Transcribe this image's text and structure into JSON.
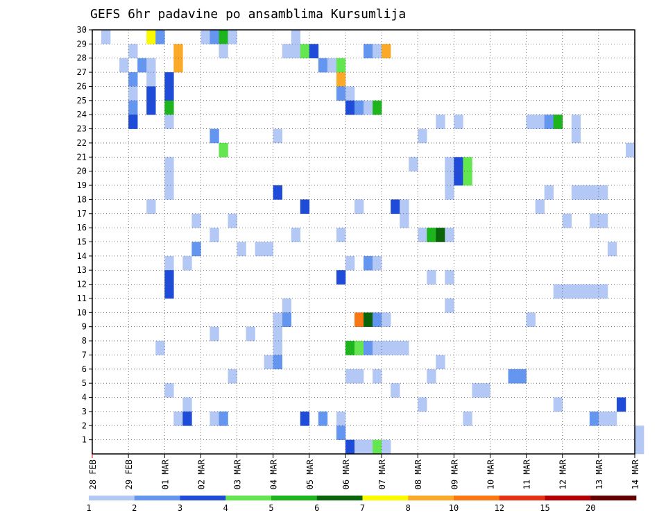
{
  "chart_data": {
    "type": "heatmap",
    "title": "GEFS 6hr padavine po ansamblima Kursumlija",
    "xlabel": "",
    "ylabel": "",
    "x_tick_labels": [
      "28 FEB",
      "29 FEB",
      "01 MAR",
      "02 MAR",
      "03 MAR",
      "04 MAR",
      "05 MAR",
      "06 MAR",
      "07 MAR",
      "08 MAR",
      "09 MAR",
      "10 MAR",
      "11 MAR",
      "12 MAR",
      "13 MAR",
      "14 MAR"
    ],
    "y_tick_labels": [
      "1",
      "2",
      "3",
      "4",
      "5",
      "6",
      "7",
      "8",
      "9",
      "10",
      "11",
      "12",
      "13",
      "14",
      "15",
      "16",
      "17",
      "18",
      "19",
      "20",
      "21",
      "22",
      "23",
      "24",
      "25",
      "26",
      "27",
      "28",
      "29",
      "30"
    ],
    "ylim": [
      0,
      30
    ],
    "grid": true,
    "colorbar": {
      "labels": [
        "1",
        "2",
        "3",
        "4",
        "5",
        "6",
        "7",
        "8",
        "10",
        "12",
        "15",
        "20"
      ],
      "colors": [
        "#b4c8f5",
        "#6496f0",
        "#1e4bd7",
        "#64e650",
        "#1eb41e",
        "#0a640a",
        "#fafa00",
        "#faaa28",
        "#fa7814",
        "#e63214",
        "#b40000",
        "#640000"
      ]
    },
    "cells": [
      [
        1,
        30,
        1
      ],
      [
        6,
        30,
        7
      ],
      [
        7,
        30,
        2
      ],
      [
        12,
        30,
        1
      ],
      [
        13,
        30,
        2
      ],
      [
        14,
        30,
        5
      ],
      [
        15,
        30,
        1
      ],
      [
        4,
        29,
        1
      ],
      [
        9,
        29,
        8
      ],
      [
        14,
        29,
        1
      ],
      [
        3,
        28,
        1
      ],
      [
        9,
        28,
        8
      ],
      [
        25,
        28,
        2
      ],
      [
        26,
        28,
        1
      ],
      [
        27,
        28,
        4
      ],
      [
        4,
        27,
        2
      ],
      [
        8,
        27,
        3
      ],
      [
        27,
        27,
        8
      ],
      [
        4,
        26,
        1
      ],
      [
        8,
        26,
        3
      ],
      [
        27,
        26,
        2
      ],
      [
        28,
        26,
        1
      ],
      [
        4,
        25,
        2
      ],
      [
        8,
        25,
        5
      ],
      [
        28,
        25,
        3
      ],
      [
        4,
        24,
        3
      ],
      [
        8,
        24,
        1
      ],
      [
        38,
        24,
        1
      ],
      [
        40,
        24,
        1
      ],
      [
        48,
        24,
        1
      ],
      [
        49,
        24,
        1
      ],
      [
        50,
        24,
        2
      ],
      [
        51,
        24,
        5
      ],
      [
        53,
        24,
        1
      ],
      [
        13,
        23,
        2
      ],
      [
        20,
        23,
        1
      ],
      [
        36,
        23,
        1
      ],
      [
        53,
        23,
        1
      ],
      [
        14,
        22,
        4
      ],
      [
        59,
        22,
        1
      ],
      [
        8,
        21,
        1
      ],
      [
        39,
        21,
        1
      ],
      [
        8,
        20,
        1
      ],
      [
        39,
        20,
        1
      ],
      [
        40,
        20,
        3
      ],
      [
        41,
        20,
        4
      ],
      [
        8,
        19,
        1
      ],
      [
        20,
        19,
        3
      ],
      [
        39,
        19,
        1
      ],
      [
        50,
        19,
        1
      ],
      [
        53,
        19,
        1
      ],
      [
        54,
        19,
        1
      ],
      [
        55,
        19,
        1
      ],
      [
        56,
        19,
        1
      ],
      [
        6,
        18,
        1
      ],
      [
        11,
        17,
        1
      ],
      [
        23,
        18,
        3
      ],
      [
        29,
        18,
        1
      ],
      [
        33,
        18,
        3
      ],
      [
        34,
        18,
        1
      ],
      [
        49,
        18,
        1
      ],
      [
        15,
        17,
        1
      ],
      [
        34,
        17,
        1
      ],
      [
        52,
        17,
        1
      ],
      [
        55,
        17,
        1
      ],
      [
        56,
        17,
        1
      ],
      [
        13,
        16,
        1
      ],
      [
        22,
        16,
        1
      ],
      [
        27,
        16,
        1
      ],
      [
        11,
        15,
        2
      ],
      [
        16,
        15,
        1
      ],
      [
        18,
        15,
        1
      ],
      [
        19,
        15,
        1
      ],
      [
        57,
        15,
        1
      ],
      [
        8,
        14,
        1
      ],
      [
        10,
        14,
        1
      ],
      [
        28,
        14,
        1
      ],
      [
        30,
        14,
        2
      ],
      [
        31,
        14,
        1
      ],
      [
        8,
        13,
        3
      ],
      [
        27,
        13,
        3
      ],
      [
        37,
        13,
        1
      ],
      [
        8,
        12,
        3
      ],
      [
        51,
        12,
        1
      ],
      [
        52,
        12,
        1
      ],
      [
        53,
        12,
        1
      ],
      [
        54,
        12,
        1
      ],
      [
        55,
        12,
        1
      ],
      [
        56,
        12,
        1
      ],
      [
        21,
        11,
        1
      ],
      [
        39,
        11,
        1
      ],
      [
        21,
        10,
        2
      ],
      [
        48,
        10,
        1
      ],
      [
        13,
        9,
        1
      ],
      [
        17,
        9,
        1
      ],
      [
        7,
        8,
        1
      ],
      [
        20,
        8,
        1
      ],
      [
        19,
        7,
        1
      ],
      [
        20,
        7,
        2
      ],
      [
        38,
        7,
        1
      ],
      [
        15,
        6,
        1
      ],
      [
        28,
        6,
        1
      ],
      [
        29,
        6,
        1
      ],
      [
        31,
        6,
        1
      ],
      [
        37,
        6,
        1
      ],
      [
        46,
        6,
        2
      ],
      [
        47,
        6,
        2
      ],
      [
        8,
        5,
        1
      ],
      [
        33,
        5,
        1
      ],
      [
        42,
        5,
        1
      ],
      [
        43,
        5,
        1
      ],
      [
        10,
        4,
        1
      ],
      [
        36,
        4,
        1
      ],
      [
        51,
        4,
        1
      ],
      [
        58,
        4,
        3
      ],
      [
        9,
        3,
        1
      ],
      [
        10,
        3,
        3
      ],
      [
        13,
        3,
        1
      ],
      [
        14,
        3,
        2
      ],
      [
        23,
        3,
        3
      ],
      [
        25,
        3,
        2
      ],
      [
        27,
        3,
        1
      ],
      [
        41,
        3,
        1
      ],
      [
        55,
        3,
        2
      ],
      [
        56,
        3,
        1
      ],
      [
        57,
        3,
        1
      ],
      [
        27,
        2,
        2
      ],
      [
        60,
        2,
        1
      ],
      [
        28,
        1,
        3
      ],
      [
        29,
        1,
        1
      ],
      [
        30,
        1,
        1
      ],
      [
        31,
        1,
        4
      ],
      [
        32,
        1,
        1
      ],
      [
        60,
        1,
        1
      ],
      [
        22,
        30,
        1
      ],
      [
        21,
        29,
        1
      ],
      [
        22,
        29,
        1
      ],
      [
        23,
        29,
        4
      ],
      [
        24,
        29,
        3
      ],
      [
        5,
        28,
        2
      ],
      [
        6,
        28,
        1
      ],
      [
        6,
        27,
        1
      ],
      [
        6,
        26,
        3
      ],
      [
        6,
        25,
        3
      ],
      [
        35,
        21,
        1
      ],
      [
        40,
        21,
        3
      ],
      [
        41,
        21,
        4
      ],
      [
        30,
        29,
        2
      ],
      [
        31,
        29,
        1
      ],
      [
        32,
        29,
        8
      ],
      [
        29,
        25,
        2
      ],
      [
        30,
        25,
        1
      ],
      [
        31,
        25,
        5
      ],
      [
        28,
        8,
        5
      ],
      [
        29,
        8,
        4
      ],
      [
        30,
        8,
        2
      ],
      [
        31,
        8,
        1
      ],
      [
        32,
        8,
        1
      ],
      [
        33,
        8,
        1
      ],
      [
        34,
        8,
        1
      ],
      [
        20,
        10,
        1
      ],
      [
        20,
        9,
        1
      ],
      [
        29,
        10,
        9
      ],
      [
        30,
        10,
        6
      ],
      [
        31,
        10,
        2
      ],
      [
        32,
        10,
        1
      ],
      [
        36,
        16,
        1
      ],
      [
        37,
        16,
        5
      ],
      [
        38,
        16,
        6
      ],
      [
        39,
        16,
        1
      ],
      [
        39,
        13,
        1
      ]
    ]
  }
}
